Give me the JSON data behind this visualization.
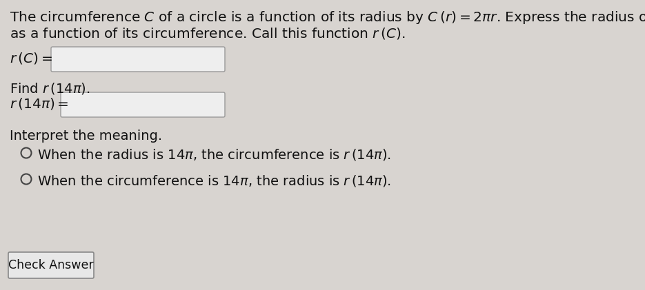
{
  "bg_color": "#d8d4d0",
  "text_color": "#111111",
  "title_line1": "The circumference $C$ of a circle is a function of its radius by $C\\,(r) = 2\\pi r$. Express the radius of a circle",
  "title_line2": "as a function of its circumference. Call this function $r\\,(C)$.",
  "label_rC": "$r\\,(C) =$",
  "label_find": "Find $r\\,(14\\pi)$.",
  "label_r14pi": "$r\\,(14\\pi) =$",
  "label_interpret": "Interpret the meaning.",
  "option1": "When the radius is $14\\pi$, the circumference is $r\\,(14\\pi)$.",
  "option2": "When the circumference is $14\\pi$, the radius is $r\\,(14\\pi)$.",
  "check_answer": "Check Answer",
  "box_color": "#eeeeee",
  "box_border": "#999999",
  "button_color": "#e8e8e8",
  "button_border": "#888888",
  "radio_color": "#444444",
  "fontsize_title": 14.5,
  "fontsize_body": 14.0,
  "fontsize_btn": 12.5
}
